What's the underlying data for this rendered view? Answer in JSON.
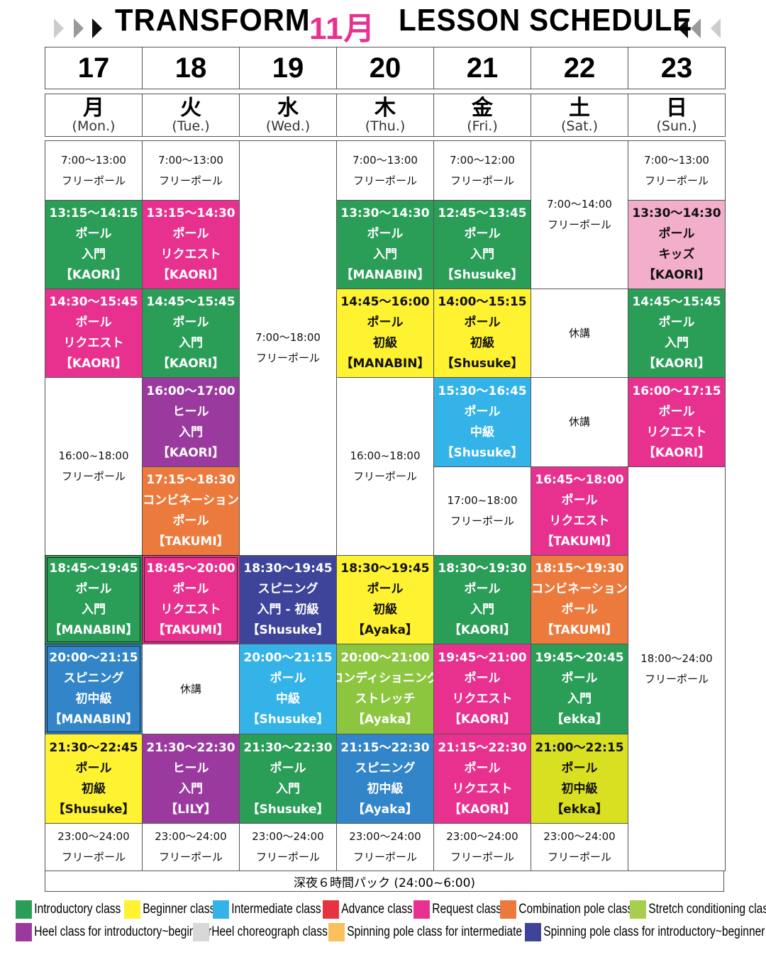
{
  "header": {
    "brand": "TRANSFORM",
    "month": "11月",
    "title": "LESSON SCHEDULE"
  },
  "days": [
    {
      "date": "17",
      "day": "月",
      "en": "(Mon.)",
      "slots": [
        {
          "color": "#ffffff",
          "lines": [
            "7:00〜13:00",
            "フリーポール"
          ]
        },
        {
          "color": "#2a9d57",
          "lines": [
            "13:15〜14:15",
            "ポール",
            "入門",
            "【KAORI】"
          ]
        },
        {
          "color": "#e8318f",
          "lines": [
            "14:30〜15:45",
            "ポール",
            "リクエスト",
            "【KAORI】"
          ]
        },
        {
          "color": "#ffffff",
          "lines": [
            "16:00~18:00",
            "フリーポール"
          ]
        },
        {
          "color": "#2a9d57",
          "lines": [
            "18:45〜19:45",
            "ポール",
            "入門",
            "【MANABIN】"
          ]
        },
        {
          "color": "#3285c8",
          "lines": [
            "20:00〜21:15",
            "スピニング",
            "初中級",
            "【MANABIN】"
          ]
        },
        {
          "color": "#fff230",
          "lines": [
            "21:30〜22:45",
            "ポール",
            "初級",
            "【Shusuke】"
          ]
        },
        {
          "color": "#ffffff",
          "lines": [
            "23:00〜24:00",
            "フリーポール"
          ]
        }
      ]
    },
    {
      "date": "18",
      "day": "火",
      "en": "(Tue.)",
      "slots": [
        {
          "color": "#ffffff",
          "lines": [
            "7:00〜13:00",
            "フリーポール"
          ]
        },
        {
          "color": "#e8318f",
          "lines": [
            "13:15〜14:30",
            "ポール",
            "リクエスト",
            "【KAORI】"
          ]
        },
        {
          "color": "#2a9d57",
          "lines": [
            "14:45〜15:45",
            "ポール",
            "入門",
            "【KAORI】"
          ]
        },
        {
          "color": "#9b3a9e",
          "lines": [
            "16:00〜17:00",
            "ヒール",
            "入門",
            "【KAORI】"
          ]
        },
        {
          "color": "#ed7a3d",
          "lines": [
            "17:15〜18:30",
            "コンビネーション",
            "ポール",
            "【TAKUMI】"
          ]
        },
        {
          "color": "#e8318f",
          "lines": [
            "18:45〜20:00",
            "ポール",
            "リクエスト",
            "【TAKUMI】"
          ]
        },
        {
          "color": "#ffffff",
          "lines": [
            "休講"
          ]
        },
        {
          "color": "#9b3a9e",
          "lines": [
            "21:30〜22:30",
            "ヒール",
            "入門",
            "【LILY】"
          ]
        },
        {
          "color": "#ffffff",
          "lines": [
            "23:00〜24:00",
            "フリーポール"
          ]
        }
      ]
    },
    {
      "date": "19",
      "day": "水",
      "en": "(Wed.)",
      "slots": [
        {
          "color": "#ffffff",
          "lines": [
            "7:00〜18:00",
            "フリーポール"
          ]
        },
        {
          "color": "#3d4499",
          "lines": [
            "18:30〜19:45",
            "スピニング",
            "入門 - 初級",
            "【Shusuke】"
          ]
        },
        {
          "color": "#34b3e8",
          "lines": [
            "20:00〜21:15",
            "ポール",
            "中級",
            "【Shusuke】"
          ]
        },
        {
          "color": "#2a9d57",
          "lines": [
            "21:30〜22:30",
            "ポール",
            "入門",
            "【Shusuke】"
          ]
        },
        {
          "color": "#ffffff",
          "lines": [
            "23:00〜24:00",
            "フリーポール"
          ]
        }
      ]
    },
    {
      "date": "20",
      "day": "木",
      "en": "(Thu.)",
      "slots": [
        {
          "color": "#ffffff",
          "lines": [
            "7:00〜13:00",
            "フリーポール"
          ]
        },
        {
          "color": "#2a9d57",
          "lines": [
            "13:30〜14:30",
            "ポール",
            "入門",
            "【MANABIN】"
          ]
        },
        {
          "color": "#fff230",
          "lines": [
            "14:45〜16:00",
            "ポール",
            "初級",
            "【MANABIN】"
          ]
        },
        {
          "color": "#ffffff",
          "lines": [
            "16:00~18:00",
            "フリーポール"
          ]
        },
        {
          "color": "#fff230",
          "lines": [
            "18:30〜19:45",
            "ポール",
            "初級",
            "【Ayaka】"
          ]
        },
        {
          "color": "#8cc63f",
          "lines": [
            "20:00〜21:00",
            "コンディショニング",
            "ストレッチ",
            "【Ayaka】"
          ]
        },
        {
          "color": "#3285c8",
          "lines": [
            "21:15〜22:30",
            "スピニング",
            "初中級",
            "【Ayaka】"
          ]
        },
        {
          "color": "#ffffff",
          "lines": [
            "23:00〜24:00",
            "フリーポール"
          ]
        }
      ]
    },
    {
      "date": "21",
      "day": "金",
      "en": "(Fri.)",
      "slots": [
        {
          "color": "#ffffff",
          "lines": [
            "7:00〜12:00",
            "フリーポール"
          ]
        },
        {
          "color": "#2a9d57",
          "lines": [
            "12:45〜13:45",
            "ポール",
            "入門",
            "【Shusuke】"
          ]
        },
        {
          "color": "#fff230",
          "lines": [
            "14:00〜15:15",
            "ポール",
            "初級",
            "【Shusuke】"
          ]
        },
        {
          "color": "#34b3e8",
          "lines": [
            "15:30〜16:45",
            "ポール",
            "中級",
            "【Shusuke】"
          ]
        },
        {
          "color": "#ffffff",
          "lines": [
            "17:00~18:00",
            "フリーポール"
          ]
        },
        {
          "color": "#2a9d57",
          "lines": [
            "18:30〜19:30",
            "ポール",
            "入門",
            "【KAORI】"
          ]
        },
        {
          "color": "#e8318f",
          "lines": [
            "19:45〜21:00",
            "ポール",
            "リクエスト",
            "【KAORI】"
          ]
        },
        {
          "color": "#e8318f",
          "lines": [
            "21:15〜22:30",
            "ポール",
            "リクエスト",
            "【KAORI】"
          ]
        },
        {
          "color": "#ffffff",
          "lines": [
            "23:00〜24:00",
            "フリーポール"
          ]
        }
      ]
    },
    {
      "date": "22",
      "day": "土",
      "en": "(Sat.)",
      "slots": [
        {
          "color": "#ffffff",
          "lines": [
            "7:00〜14:00",
            "フリーポール"
          ]
        },
        {
          "color": "#ffffff",
          "lines": [
            "休講"
          ]
        },
        {
          "color": "#ffffff",
          "lines": [
            "休講"
          ]
        },
        {
          "color": "#e8318f",
          "lines": [
            "16:45〜18:00",
            "ポール",
            "リクエスト",
            "【TAKUMI】"
          ]
        },
        {
          "color": "#ed7a3d",
          "lines": [
            "18:15〜19:30",
            "コンビネーション",
            "ポール",
            "【TAKUMI】"
          ]
        },
        {
          "color": "#2a9d57",
          "lines": [
            "19:45〜20:45",
            "ポール",
            "入門",
            "【ekka】"
          ]
        },
        {
          "color": "#d9e021",
          "lines": [
            "21:00〜22:15",
            "ポール",
            "初中級",
            "【ekka】"
          ]
        },
        {
          "color": "#ffffff",
          "lines": [
            "23:00〜24:00",
            "フリーポール"
          ]
        }
      ]
    },
    {
      "date": "23",
      "day": "日",
      "en": "(Sun.)",
      "slots": [
        {
          "color": "#ffffff",
          "lines": [
            "7:00〜13:00",
            "フリーポール"
          ]
        },
        {
          "color": "#f3aecb",
          "lines": [
            "13:30〜14:30",
            "ポール",
            "キッズ",
            "【KAORI】"
          ]
        },
        {
          "color": "#2a9d57",
          "lines": [
            "14:45〜15:45",
            "ポール",
            "入門",
            "【KAORI】"
          ]
        },
        {
          "color": "#e8318f",
          "lines": [
            "16:00〜17:15",
            "ポール",
            "リクエスト",
            "【KAORI】"
          ]
        },
        {
          "color": "#ffffff",
          "lines": [
            "18:00〜24:00",
            "フリーポール"
          ]
        }
      ]
    }
  ],
  "footer": "深夜６時間パック (24:00~6:00)",
  "legend": [
    {
      "color": "#2a9d57",
      "label": "Introductory class"
    },
    {
      "color": "#fff230",
      "label": "Beginner class"
    },
    {
      "color": "#34b3e8",
      "label": "Intermediate class"
    },
    {
      "color": "#e63340",
      "label": "Advance class"
    },
    {
      "color": "#e8318f",
      "label": "Request class"
    },
    {
      "color": "#ed7a3d",
      "label": "Combination pole class"
    },
    {
      "color": "#a5cf4c",
      "label": "Stretch conditioning class"
    },
    {
      "color": "#9b3a9e",
      "label": "Heel class for introductory~beginner"
    },
    {
      "color": "#d8d8d8",
      "label": "Heel choreograph class"
    },
    {
      "color": "#f8c15c",
      "label": "Spinning pole class for intermediate"
    },
    {
      "color": "#3d4499",
      "label": "Spinning pole class for introductory~beginner"
    }
  ]
}
